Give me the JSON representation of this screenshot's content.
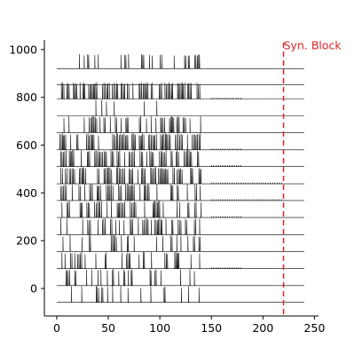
{
  "chart_data": {
    "type": "line",
    "title": "",
    "xlabel": "",
    "ylabel": "",
    "xlim": [
      -12,
      254
    ],
    "ylim": [
      -115,
      1040
    ],
    "x_ticks": [
      0,
      50,
      100,
      150,
      200,
      250
    ],
    "y_ticks": [
      0,
      200,
      400,
      600,
      800,
      1000
    ],
    "grid": false,
    "trace_color": "#000000",
    "trace_x_range": [
      0,
      240
    ],
    "spike_window_end": 140,
    "traces": [
      {
        "baseline": -58,
        "spike_height": 70,
        "intervals": [
          [
            10,
            140
          ]
        ],
        "density": 0.36,
        "seed": 1
      },
      {
        "baseline": 12,
        "spike_height": 70,
        "intervals": [
          [
            9,
            140
          ]
        ],
        "density": 0.4,
        "seed": 2
      },
      {
        "baseline": 83,
        "spike_height": 70,
        "intervals": [
          [
            5,
            140
          ]
        ],
        "density": 0.55,
        "seed": 3,
        "tail": {
          "range": [
            150,
            180
          ],
          "height": 5
        }
      },
      {
        "baseline": 155,
        "spike_height": 70,
        "intervals": [
          [
            6,
            140
          ]
        ],
        "density": 0.6,
        "seed": 4
      },
      {
        "baseline": 225,
        "spike_height": 70,
        "intervals": [
          [
            4,
            140
          ]
        ],
        "density": 0.66,
        "seed": 5
      },
      {
        "baseline": 297,
        "spike_height": 70,
        "intervals": [
          [
            5,
            140
          ]
        ],
        "density": 0.55,
        "seed": 6,
        "tail": {
          "range": [
            150,
            180
          ],
          "height": 5
        }
      },
      {
        "baseline": 368,
        "spike_height": 70,
        "intervals": [
          [
            4,
            140
          ]
        ],
        "density": 0.62,
        "seed": 7,
        "tail": {
          "range": [
            150,
            220
          ],
          "height": 5
        }
      },
      {
        "baseline": 438,
        "spike_height": 70,
        "intervals": [
          [
            4,
            140
          ]
        ],
        "density": 0.7,
        "seed": 8,
        "tail": {
          "range": [
            150,
            220
          ],
          "height": 5
        }
      },
      {
        "baseline": 510,
        "spike_height": 70,
        "intervals": [
          [
            4,
            140
          ]
        ],
        "density": 0.66,
        "seed": 9,
        "tail": {
          "range": [
            150,
            180
          ],
          "height": 6
        }
      },
      {
        "baseline": 580,
        "spike_height": 70,
        "intervals": [
          [
            3,
            140
          ]
        ],
        "density": 0.72,
        "seed": 10,
        "tail": {
          "range": [
            150,
            180
          ],
          "height": 5
        }
      },
      {
        "baseline": 652,
        "spike_height": 70,
        "intervals": [
          [
            5,
            140
          ]
        ],
        "density": 0.55,
        "seed": 11
      },
      {
        "baseline": 722,
        "spike_height": 70,
        "intervals": [
          [
            18,
            140
          ]
        ],
        "density": 0.22,
        "seed": 12
      },
      {
        "baseline": 793,
        "spike_height": 70,
        "intervals": [
          [
            3,
            140
          ]
        ],
        "density": 0.8,
        "seed": 13,
        "tail": {
          "range": [
            150,
            180
          ],
          "height": 5
        }
      },
      {
        "baseline": 920,
        "spike_height": 62,
        "intervals": [
          [
            12,
            140
          ]
        ],
        "density": 0.45,
        "seed": 14
      },
      {
        "baseline": 853,
        "spike_height": 0,
        "intervals": [],
        "density": 0,
        "seed": 15
      }
    ],
    "vline": {
      "x": 220,
      "color": "#d62728",
      "style": "dashed"
    },
    "annotations": [
      {
        "text": "Syn. Block",
        "x": 220,
        "y": 1015,
        "color": "#d62728"
      }
    ]
  }
}
